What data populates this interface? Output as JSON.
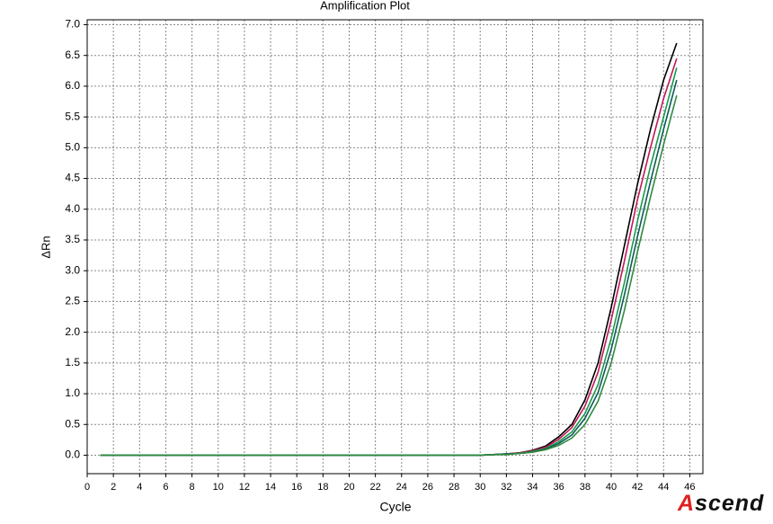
{
  "chart_data": {
    "type": "line",
    "title": "Amplification Plot",
    "xlabel": "Cycle",
    "ylabel": "ΔRn",
    "logo": "Ascend",
    "grid": true,
    "xlim": [
      0,
      47
    ],
    "ylim": [
      -0.3,
      7.08
    ],
    "xticks": [
      0,
      2,
      4,
      6,
      8,
      10,
      12,
      14,
      16,
      18,
      20,
      22,
      24,
      26,
      28,
      30,
      32,
      34,
      36,
      38,
      40,
      42,
      44,
      46
    ],
    "yticks": [
      {
        "value": 0,
        "label": "0.0"
      },
      0.5,
      {
        "value": 1,
        "label": "1.0"
      },
      1.5,
      {
        "value": 2,
        "label": "2.0"
      },
      2.5,
      {
        "value": 3,
        "label": "3.0"
      },
      3.5,
      {
        "value": 4,
        "label": "4.0"
      },
      4.5,
      {
        "value": 5,
        "label": "5.0"
      },
      5.5,
      {
        "value": 6,
        "label": "6.0"
      },
      6.5,
      {
        "value": 7,
        "label": "7.0"
      }
    ],
    "x": [
      1,
      2,
      3,
      4,
      5,
      6,
      7,
      8,
      9,
      10,
      11,
      12,
      13,
      14,
      15,
      16,
      17,
      18,
      19,
      20,
      21,
      22,
      23,
      24,
      25,
      26,
      27,
      28,
      29,
      30,
      31,
      32,
      33,
      34,
      35,
      36,
      37,
      38,
      39,
      40,
      41,
      42,
      43,
      44,
      45
    ],
    "series": [
      {
        "color": "#000000",
        "values": [
          0,
          0,
          0,
          0,
          0,
          0,
          0,
          0,
          0,
          0,
          0,
          0,
          0,
          0,
          0,
          0,
          0,
          0,
          0,
          0,
          0,
          0,
          0,
          0,
          0,
          0,
          0,
          0,
          0,
          0,
          0.01,
          0.02,
          0.04,
          0.08,
          0.15,
          0.3,
          0.5,
          0.9,
          1.5,
          2.4,
          3.4,
          4.4,
          5.3,
          6.1,
          6.7
        ]
      },
      {
        "color": "#c0185a",
        "values": [
          0,
          0,
          0,
          0,
          0,
          0,
          0,
          0,
          0,
          0,
          0,
          0,
          0,
          0,
          0,
          0,
          0,
          0,
          0,
          0,
          0,
          0,
          0,
          0,
          0,
          0,
          0,
          0,
          0,
          0,
          0.01,
          0.02,
          0.04,
          0.07,
          0.13,
          0.26,
          0.45,
          0.8,
          1.35,
          2.2,
          3.15,
          4.15,
          5.0,
          5.8,
          6.45
        ]
      },
      {
        "color": "#1a9a4a",
        "values": [
          0,
          0,
          0,
          0,
          0,
          0,
          0,
          0,
          0,
          0,
          0,
          0,
          0,
          0,
          0,
          0,
          0,
          0,
          0,
          0,
          0,
          0,
          0,
          0,
          0,
          0,
          0,
          0,
          0,
          0,
          0.01,
          0.02,
          0.03,
          0.06,
          0.11,
          0.22,
          0.38,
          0.68,
          1.15,
          1.9,
          2.8,
          3.8,
          4.7,
          5.5,
          6.3
        ]
      },
      {
        "color": "#0e5a5a",
        "values": [
          0,
          0,
          0,
          0,
          0,
          0,
          0,
          0,
          0,
          0,
          0,
          0,
          0,
          0,
          0,
          0,
          0,
          0,
          0,
          0,
          0,
          0,
          0,
          0,
          0,
          0,
          0,
          0,
          0,
          0,
          0.01,
          0.02,
          0.03,
          0.05,
          0.1,
          0.19,
          0.33,
          0.6,
          1.02,
          1.72,
          2.6,
          3.55,
          4.45,
          5.3,
          6.1
        ]
      },
      {
        "color": "#2e8b3e",
        "values": [
          0,
          0,
          0,
          0,
          0,
          0,
          0,
          0,
          0,
          0,
          0,
          0,
          0,
          0,
          0,
          0,
          0,
          0,
          0,
          0,
          0,
          0,
          0,
          0,
          0,
          0,
          0,
          0,
          0,
          0,
          0.01,
          0.01,
          0.03,
          0.05,
          0.09,
          0.16,
          0.28,
          0.5,
          0.88,
          1.5,
          2.35,
          3.3,
          4.2,
          5.05,
          5.85
        ]
      }
    ]
  }
}
